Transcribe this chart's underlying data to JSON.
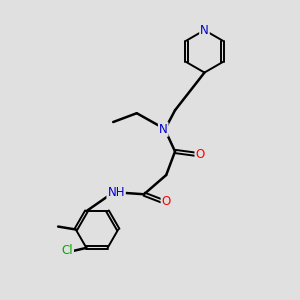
{
  "background_color": "#e0e0e0",
  "bond_color": "#000000",
  "bond_width": 1.8,
  "atom_colors": {
    "N": "#0000cc",
    "O": "#ff0000",
    "Cl": "#00aa00",
    "C": "#000000"
  },
  "font_size_atom": 8.5
}
